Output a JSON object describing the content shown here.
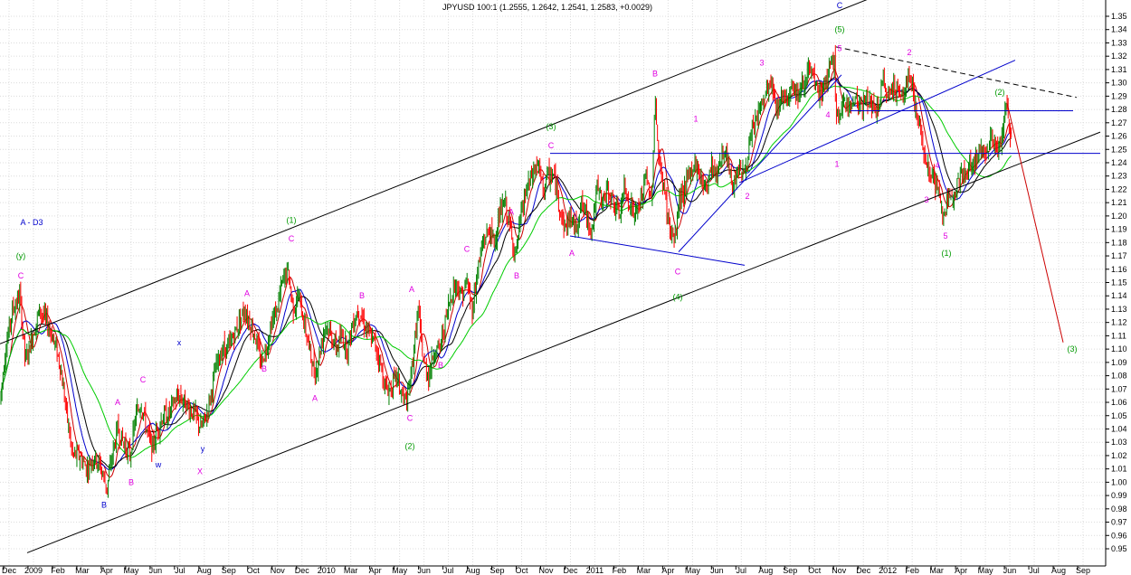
{
  "chart_data": {
    "type": "candlestick",
    "title": "JPYUSD 100:1 (1.2555, 1.2642, 1.2541, 1.2583, +0.0029)",
    "ylim": [
      0.947,
      1.36
    ],
    "yticks": [
      "0.95",
      "0.96",
      "0.97",
      "0.98",
      "0.99",
      "1.00",
      "1.01",
      "1.02",
      "1.03",
      "1.04",
      "1.05",
      "1.06",
      "1.07",
      "1.08",
      "1.09",
      "1.10",
      "1.11",
      "1.12",
      "1.13",
      "1.14",
      "1.15",
      "1.16",
      "1.17",
      "1.18",
      "1.19",
      "1.20",
      "1.21",
      "1.22",
      "1.23",
      "1.24",
      "1.25",
      "1.26",
      "1.27",
      "1.28",
      "1.29",
      "1.30",
      "1.31",
      "1.32",
      "1.33",
      "1.34",
      "1.35"
    ],
    "xticks": [
      "Dec",
      "2009",
      "Feb",
      "Mar",
      "Apr",
      "May",
      "Jun",
      "Jul",
      "Aug",
      "Sep",
      "Oct",
      "Nov",
      "Dec",
      "2010",
      "Mar",
      "Apr",
      "May",
      "Jun",
      "Jul",
      "Aug",
      "Sep",
      "Oct",
      "Nov",
      "Dec",
      "2011",
      "Feb",
      "Mar",
      "Apr",
      "May",
      "Jun",
      "Jul",
      "Aug",
      "Sep",
      "Oct",
      "Nov",
      "Dec",
      "2012",
      "Feb",
      "Mar",
      "Apr",
      "May",
      "Jun",
      "Jul",
      "Aug",
      "Sep"
    ],
    "grid": true,
    "colors": {
      "up": "#008000",
      "down": "#ff0000",
      "ma_red": "#cc0000",
      "ma_blue": "#0000cc",
      "ma_black": "#000000",
      "ma_green": "#00cc00",
      "trend": "#000000",
      "pattern": "#0000cc",
      "target": "#cc0000",
      "label_magenta": "#e000e0",
      "label_green": "#009900",
      "label_blue": "#0000cc"
    },
    "close_path": [
      [
        0,
        1.06
      ],
      [
        6,
        1.1
      ],
      [
        14,
        1.13
      ],
      [
        22,
        1.14
      ],
      [
        28,
        1.09
      ],
      [
        36,
        1.11
      ],
      [
        44,
        1.13
      ],
      [
        52,
        1.12
      ],
      [
        58,
        1.11
      ],
      [
        66,
        1.09
      ],
      [
        72,
        1.06
      ],
      [
        80,
        1.02
      ],
      [
        88,
        1.02
      ],
      [
        96,
        1.01
      ],
      [
        104,
        1.02
      ],
      [
        112,
        1.01
      ],
      [
        118,
        0.995
      ],
      [
        124,
        1.02
      ],
      [
        130,
        1.04
      ],
      [
        136,
        1.03
      ],
      [
        144,
        1.02
      ],
      [
        150,
        1.05
      ],
      [
        156,
        1.06
      ],
      [
        162,
        1.04
      ],
      [
        168,
        1.025
      ],
      [
        174,
        1.04
      ],
      [
        180,
        1.05
      ],
      [
        186,
        1.05
      ],
      [
        192,
        1.06
      ],
      [
        198,
        1.065
      ],
      [
        204,
        1.06
      ],
      [
        210,
        1.055
      ],
      [
        216,
        1.05
      ],
      [
        222,
        1.04
      ],
      [
        228,
        1.05
      ],
      [
        234,
        1.07
      ],
      [
        240,
        1.09
      ],
      [
        246,
        1.1
      ],
      [
        252,
        1.1
      ],
      [
        258,
        1.11
      ],
      [
        264,
        1.12
      ],
      [
        270,
        1.13
      ],
      [
        276,
        1.12
      ],
      [
        282,
        1.11
      ],
      [
        288,
        1.09
      ],
      [
        294,
        1.1
      ],
      [
        300,
        1.12
      ],
      [
        306,
        1.13
      ],
      [
        312,
        1.15
      ],
      [
        318,
        1.16
      ],
      [
        324,
        1.13
      ],
      [
        330,
        1.14
      ],
      [
        336,
        1.12
      ],
      [
        342,
        1.1
      ],
      [
        348,
        1.08
      ],
      [
        354,
        1.1
      ],
      [
        360,
        1.12
      ],
      [
        366,
        1.11
      ],
      [
        372,
        1.1
      ],
      [
        378,
        1.11
      ],
      [
        384,
        1.1
      ],
      [
        390,
        1.12
      ],
      [
        396,
        1.13
      ],
      [
        402,
        1.12
      ],
      [
        408,
        1.11
      ],
      [
        414,
        1.105
      ],
      [
        420,
        1.09
      ],
      [
        426,
        1.07
      ],
      [
        432,
        1.07
      ],
      [
        438,
        1.08
      ],
      [
        444,
        1.065
      ],
      [
        450,
        1.06
      ],
      [
        456,
        1.09
      ],
      [
        462,
        1.13
      ],
      [
        468,
        1.09
      ],
      [
        474,
        1.08
      ],
      [
        480,
        1.1
      ],
      [
        486,
        1.1
      ],
      [
        492,
        1.12
      ],
      [
        498,
        1.14
      ],
      [
        504,
        1.15
      ],
      [
        510,
        1.14
      ],
      [
        516,
        1.15
      ],
      [
        522,
        1.13
      ],
      [
        528,
        1.16
      ],
      [
        534,
        1.18
      ],
      [
        540,
        1.19
      ],
      [
        546,
        1.18
      ],
      [
        552,
        1.2
      ],
      [
        558,
        1.21
      ],
      [
        564,
        1.19
      ],
      [
        570,
        1.17
      ],
      [
        576,
        1.2
      ],
      [
        582,
        1.22
      ],
      [
        588,
        1.23
      ],
      [
        594,
        1.24
      ],
      [
        600,
        1.22
      ],
      [
        606,
        1.23
      ],
      [
        612,
        1.23
      ],
      [
        618,
        1.21
      ],
      [
        624,
        1.19
      ],
      [
        630,
        1.2
      ],
      [
        636,
        1.19
      ],
      [
        642,
        1.21
      ],
      [
        648,
        1.2
      ],
      [
        654,
        1.19
      ],
      [
        660,
        1.22
      ],
      [
        666,
        1.21
      ],
      [
        672,
        1.22
      ],
      [
        678,
        1.21
      ],
      [
        684,
        1.2
      ],
      [
        690,
        1.22
      ],
      [
        696,
        1.21
      ],
      [
        702,
        1.2
      ],
      [
        708,
        1.21
      ],
      [
        714,
        1.23
      ],
      [
        720,
        1.21
      ],
      [
        724,
        1.29
      ],
      [
        728,
        1.24
      ],
      [
        734,
        1.22
      ],
      [
        740,
        1.19
      ],
      [
        746,
        1.18
      ],
      [
        750,
        1.21
      ],
      [
        756,
        1.22
      ],
      [
        762,
        1.23
      ],
      [
        768,
        1.24
      ],
      [
        774,
        1.23
      ],
      [
        780,
        1.22
      ],
      [
        786,
        1.24
      ],
      [
        792,
        1.23
      ],
      [
        798,
        1.25
      ],
      [
        804,
        1.24
      ],
      [
        810,
        1.22
      ],
      [
        816,
        1.24
      ],
      [
        822,
        1.23
      ],
      [
        828,
        1.25
      ],
      [
        834,
        1.27
      ],
      [
        840,
        1.28
      ],
      [
        846,
        1.29
      ],
      [
        852,
        1.3
      ],
      [
        858,
        1.28
      ],
      [
        864,
        1.29
      ],
      [
        870,
        1.29
      ],
      [
        876,
        1.3
      ],
      [
        882,
        1.29
      ],
      [
        888,
        1.3
      ],
      [
        894,
        1.31
      ],
      [
        900,
        1.3
      ],
      [
        906,
        1.29
      ],
      [
        912,
        1.3
      ],
      [
        918,
        1.31
      ],
      [
        922,
        1.32
      ],
      [
        924,
        1.28
      ],
      [
        928,
        1.27
      ],
      [
        934,
        1.29
      ],
      [
        940,
        1.28
      ],
      [
        946,
        1.29
      ],
      [
        952,
        1.28
      ],
      [
        958,
        1.29
      ],
      [
        964,
        1.28
      ],
      [
        970,
        1.28
      ],
      [
        976,
        1.3
      ],
      [
        982,
        1.29
      ],
      [
        988,
        1.3
      ],
      [
        994,
        1.29
      ],
      [
        1000,
        1.29
      ],
      [
        1004,
        1.31
      ],
      [
        1008,
        1.3
      ],
      [
        1012,
        1.28
      ],
      [
        1018,
        1.26
      ],
      [
        1024,
        1.24
      ],
      [
        1030,
        1.23
      ],
      [
        1036,
        1.22
      ],
      [
        1042,
        1.2
      ],
      [
        1048,
        1.21
      ],
      [
        1054,
        1.22
      ],
      [
        1060,
        1.23
      ],
      [
        1066,
        1.23
      ],
      [
        1072,
        1.24
      ],
      [
        1078,
        1.24
      ],
      [
        1084,
        1.25
      ],
      [
        1090,
        1.25
      ],
      [
        1096,
        1.26
      ],
      [
        1102,
        1.25
      ],
      [
        1108,
        1.26
      ],
      [
        1112,
        1.285
      ],
      [
        1116,
        1.265
      ],
      [
        1118,
        1.258
      ]
    ],
    "wave_labels": [
      {
        "t": "C",
        "x": 23,
        "v": 1.155,
        "c": "label_magenta"
      },
      {
        "t": "(y)",
        "x": 23,
        "v": 1.17,
        "c": "label_green"
      },
      {
        "t": "A  - D3",
        "x": 35,
        "v": 1.195,
        "c": "label_blue"
      },
      {
        "t": "A",
        "x": 130,
        "v": 1.06,
        "c": "label_magenta"
      },
      {
        "t": "C",
        "x": 158,
        "v": 1.077,
        "c": "label_magenta"
      },
      {
        "t": "x",
        "x": 198,
        "v": 1.105,
        "c": "label_blue"
      },
      {
        "t": "B",
        "x": 115,
        "v": 0.983,
        "c": "label_blue"
      },
      {
        "t": "B",
        "x": 145,
        "v": 1.0,
        "c": "label_magenta"
      },
      {
        "t": "w",
        "x": 175,
        "v": 1.013,
        "c": "label_blue"
      },
      {
        "t": "y",
        "x": 224,
        "v": 1.025,
        "c": "label_blue"
      },
      {
        "t": "X",
        "x": 221,
        "v": 1.008,
        "c": "label_magenta"
      },
      {
        "t": "A",
        "x": 273,
        "v": 1.142,
        "c": "label_magenta"
      },
      {
        "t": "B",
        "x": 292,
        "v": 1.085,
        "c": "label_magenta"
      },
      {
        "t": "(1)",
        "x": 322,
        "v": 1.197,
        "c": "label_green"
      },
      {
        "t": "C",
        "x": 322,
        "v": 1.183,
        "c": "label_magenta"
      },
      {
        "t": "A",
        "x": 348,
        "v": 1.063,
        "c": "label_magenta"
      },
      {
        "t": "B",
        "x": 400,
        "v": 1.14,
        "c": "label_magenta"
      },
      {
        "t": "A",
        "x": 455,
        "v": 1.145,
        "c": "label_magenta"
      },
      {
        "t": "C",
        "x": 453,
        "v": 1.048,
        "c": "label_magenta"
      },
      {
        "t": "(2)",
        "x": 453,
        "v": 1.027,
        "c": "label_green"
      },
      {
        "t": "B",
        "x": 487,
        "v": 1.088,
        "c": "label_magenta"
      },
      {
        "t": "C",
        "x": 516,
        "v": 1.175,
        "c": "label_magenta"
      },
      {
        "t": "A",
        "x": 565,
        "v": 1.203,
        "c": "label_magenta"
      },
      {
        "t": "B",
        "x": 571,
        "v": 1.155,
        "c": "label_magenta"
      },
      {
        "t": "(3)",
        "x": 609,
        "v": 1.267,
        "c": "label_green"
      },
      {
        "t": "C",
        "x": 609,
        "v": 1.253,
        "c": "label_magenta"
      },
      {
        "t": "A",
        "x": 632,
        "v": 1.172,
        "c": "label_magenta"
      },
      {
        "t": "B",
        "x": 724,
        "v": 1.307,
        "c": "label_magenta"
      },
      {
        "t": "C",
        "x": 749,
        "v": 1.158,
        "c": "label_magenta"
      },
      {
        "t": "(4)",
        "x": 749,
        "v": 1.139,
        "c": "label_green"
      },
      {
        "t": "1",
        "x": 769,
        "v": 1.273,
        "c": "label_magenta"
      },
      {
        "t": "2",
        "x": 826,
        "v": 1.215,
        "c": "label_magenta"
      },
      {
        "t": "3",
        "x": 842,
        "v": 1.315,
        "c": "label_magenta"
      },
      {
        "t": "4",
        "x": 915,
        "v": 1.276,
        "c": "label_magenta"
      },
      {
        "t": "C",
        "x": 928,
        "v": 1.358,
        "c": "label_blue"
      },
      {
        "t": "(5)",
        "x": 928,
        "v": 1.34,
        "c": "label_green"
      },
      {
        "t": "5",
        "x": 928,
        "v": 1.326,
        "c": "label_magenta"
      },
      {
        "t": "1",
        "x": 925,
        "v": 1.239,
        "c": "label_magenta"
      },
      {
        "t": "2",
        "x": 1005,
        "v": 1.323,
        "c": "label_magenta"
      },
      {
        "t": "3",
        "x": 1024,
        "v": 1.212,
        "c": "label_magenta"
      },
      {
        "t": "4",
        "x": 1036,
        "v": 1.238,
        "c": "label_magenta"
      },
      {
        "t": "5",
        "x": 1045,
        "v": 1.185,
        "c": "label_magenta"
      },
      {
        "t": "(1)",
        "x": 1046,
        "v": 1.172,
        "c": "label_green"
      },
      {
        "t": "(2)",
        "x": 1105,
        "v": 1.293,
        "c": "label_green"
      },
      {
        "t": "(3)",
        "x": 1185,
        "v": 1.1,
        "c": "label_green"
      }
    ],
    "trend_lines": [
      {
        "p": [
          [
            0,
            1.104
          ],
          [
            960,
            1.363
          ]
        ],
        "c": "trend"
      },
      {
        "p": [
          [
            30,
            0.947
          ],
          [
            1216,
            1.263
          ]
        ],
        "c": "trend"
      },
      {
        "p": [
          [
            608,
            1.247
          ],
          [
            1216,
            1.247
          ]
        ],
        "c": "pattern"
      },
      {
        "p": [
          [
            630,
            1.185
          ],
          [
            823,
            1.163
          ]
        ],
        "c": "pattern"
      },
      {
        "p": [
          [
            750,
            1.173
          ],
          [
            930,
            1.306
          ]
        ],
        "c": "pattern"
      },
      {
        "p": [
          [
            817,
            1.225
          ],
          [
            1122,
            1.317
          ]
        ],
        "c": "pattern"
      },
      {
        "p": [
          [
            940,
            1.279
          ],
          [
            1186,
            1.279
          ]
        ],
        "c": "pattern"
      },
      {
        "p": [
          [
            1113,
            1.285
          ],
          [
            1175,
            1.105
          ]
        ],
        "c": "target"
      }
    ],
    "dashed_lines": [
      {
        "p": [
          [
            924,
            1.327
          ],
          [
            1190,
            1.289
          ]
        ],
        "c": "trend"
      }
    ]
  }
}
